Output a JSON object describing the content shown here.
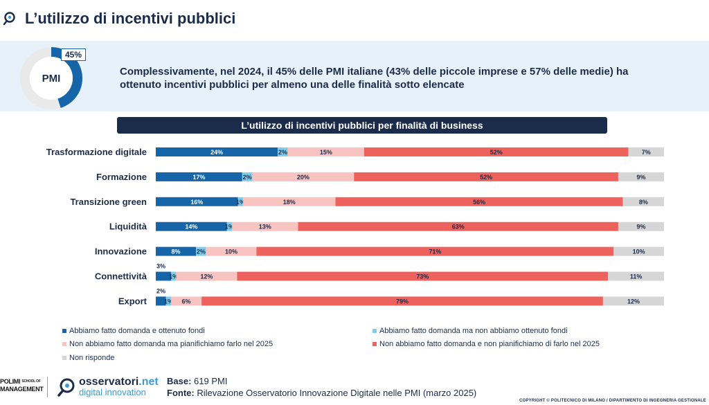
{
  "header": {
    "title": "L’utilizzo di incentivi pubblici"
  },
  "summary": {
    "donut_label": "PMI",
    "donut_percent_label": "45%",
    "donut_percent_value": 45,
    "text": "Complessivamente, nel 2024, il 45% delle PMI italiane (43% delle piccole imprese e 57% delle medie) ha ottenuto incentivi pubblici per almeno una delle finalità sotto elencate"
  },
  "chart_data": {
    "type": "bar",
    "orientation": "horizontal-stacked-100",
    "title": "L’utilizzo di incentivi pubblici per finalità di business",
    "categories": [
      "Trasformazione digitale",
      "Formazione",
      "Transizione green",
      "Liquidità",
      "Innovazione",
      "Connettività",
      "Export"
    ],
    "series": [
      {
        "name": "Abbiamo fatto domanda e ottenuto fondi",
        "color": "#1565a8",
        "values": [
          24,
          17,
          16,
          14,
          8,
          3,
          2
        ],
        "labels": [
          "24%",
          "17%",
          "16%",
          "14%",
          "8%",
          "3%",
          "2%"
        ]
      },
      {
        "name": "Abbiamo fatto domanda ma non abbiamo ottenuto fondi",
        "color": "#7fcde8",
        "values": [
          2,
          2,
          1,
          1,
          2,
          1,
          1
        ],
        "labels": [
          "2%",
          "2%",
          "1%",
          "1%",
          "2%",
          "1%",
          "1%"
        ]
      },
      {
        "name": "Non abbiamo fatto domanda ma pianifichiamo farlo nel 2025",
        "color": "#f7c4c2",
        "values": [
          15,
          20,
          18,
          13,
          10,
          12,
          6
        ],
        "labels": [
          "15%",
          "20%",
          "18%",
          "13%",
          "10%",
          "12%",
          "6%"
        ]
      },
      {
        "name": "Non abbiamo fatto domanda e non pianifichiamo di farlo nel 2025",
        "color": "#ee625e",
        "values": [
          52,
          52,
          56,
          63,
          71,
          73,
          79
        ],
        "labels": [
          "52%",
          "52%",
          "56%",
          "63%",
          "71%",
          "73%",
          "79%"
        ]
      },
      {
        "name": "Non risponde",
        "color": "#d6d6d6",
        "values": [
          7,
          9,
          8,
          9,
          10,
          11,
          12
        ],
        "labels": [
          "7%",
          "9%",
          "8%",
          "9%",
          "10%",
          "11%",
          "12%"
        ]
      }
    ]
  },
  "source": {
    "base_label": "Base:",
    "base_value": "619 PMI",
    "fonte_label": "Fonte:",
    "fonte_value": "Rilevazione Osservatorio Innovazione Digitale nelle PMI (marzo 2025)"
  },
  "logos": {
    "polimi_line1": "POLIMI",
    "polimi_small": "SCHOOL OF",
    "polimi_line2": "MANAGEMENT",
    "oss_name": "osservatori",
    "oss_net": ".net",
    "oss_sub": "digital innovation"
  },
  "copyright": "COPYRIGHT © POLITECNICO DI MILANO / DIPARTIMENTO DI INGEGNERIA GESTIONALE",
  "colors": {
    "navy": "#1b2b4a",
    "summary_bg": "#e7f1fa",
    "brand_blue": "#1565a8",
    "light_blue": "#3b9bd8"
  },
  "icons": {
    "header_icon": "magnifier-logo-icon",
    "oss_icon": "magnifier-logo-icon"
  }
}
